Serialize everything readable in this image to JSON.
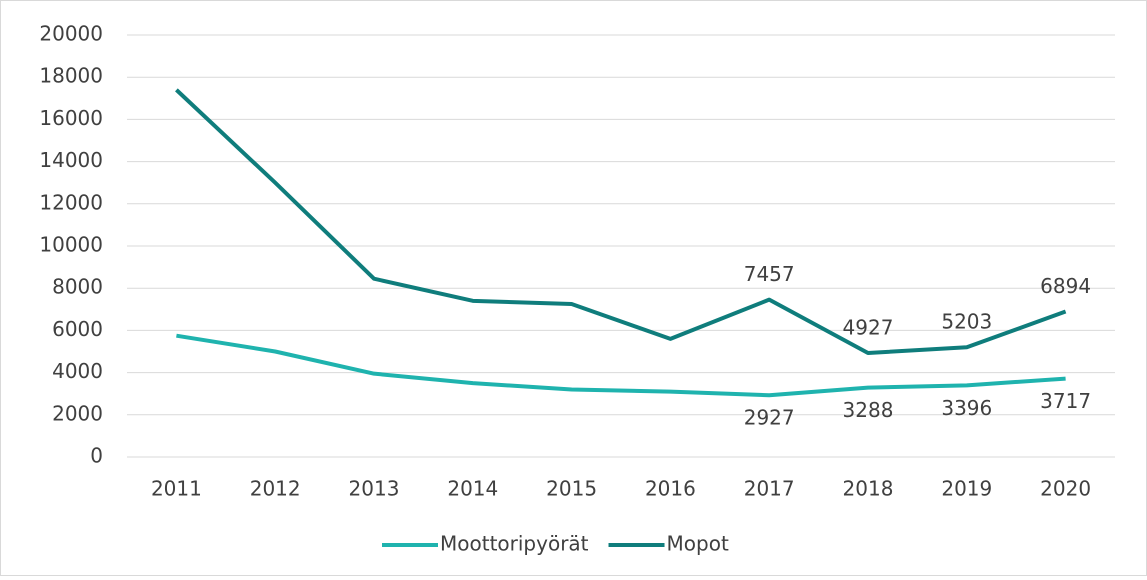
{
  "chart_data": {
    "type": "line",
    "categories": [
      "2011",
      "2012",
      "2013",
      "2014",
      "2015",
      "2016",
      "2017",
      "2018",
      "2019",
      "2020"
    ],
    "series": [
      {
        "name": "Moottoripyörät",
        "color": "#1fb3ae",
        "values": [
          5750,
          5000,
          3950,
          3500,
          3200,
          3100,
          2927,
          3288,
          3396,
          3717
        ],
        "value_labels": [
          null,
          null,
          null,
          null,
          null,
          null,
          "2927",
          "3288",
          "3396",
          "3717"
        ]
      },
      {
        "name": "Mopot",
        "color": "#0f7d7c",
        "values": [
          17400,
          13000,
          8450,
          7400,
          7250,
          5600,
          7457,
          4927,
          5203,
          6894
        ],
        "value_labels": [
          null,
          null,
          null,
          null,
          null,
          null,
          "7457",
          "4927",
          "5203",
          "6894"
        ]
      }
    ],
    "ylim": [
      0,
      20000
    ],
    "yticks": [
      0,
      2000,
      4000,
      6000,
      8000,
      10000,
      12000,
      14000,
      16000,
      18000,
      20000
    ],
    "grid": true,
    "legend": "bottom"
  }
}
